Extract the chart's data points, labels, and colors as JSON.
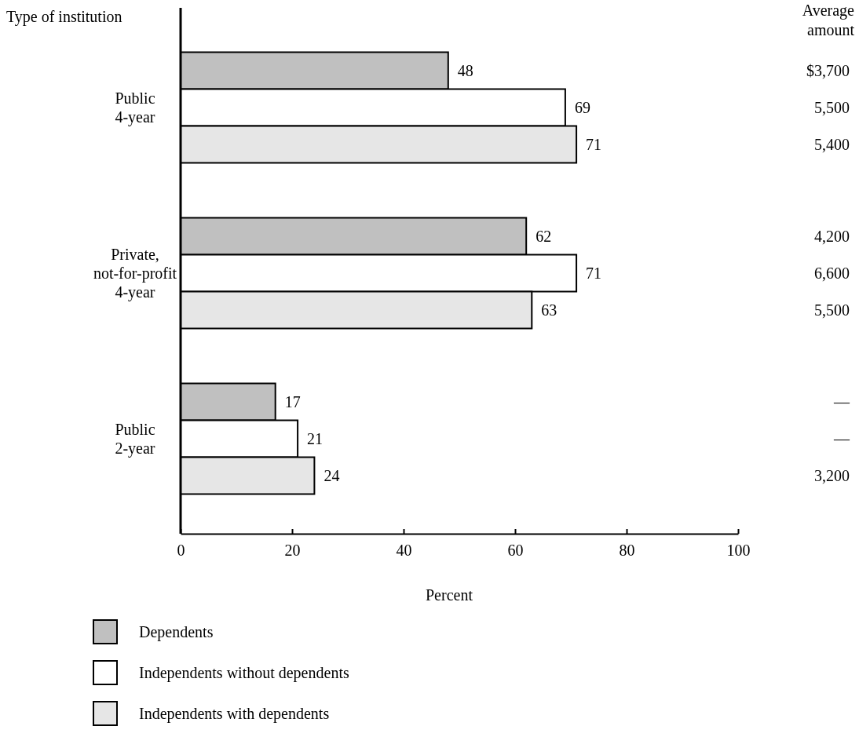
{
  "chart_data": {
    "type": "bar",
    "orientation": "horizontal",
    "ylabel": "Type of institution",
    "xlabel": "Percent",
    "categories": [
      "Public 4-year",
      "Private, not-for-profit 4-year",
      "Public 2-year"
    ],
    "series": [
      {
        "name": "Dependents",
        "color": "#c0c0c0",
        "values": [
          48,
          62,
          17
        ]
      },
      {
        "name": "Independents without dependents",
        "color": "#ffffff",
        "values": [
          69,
          71,
          21
        ]
      },
      {
        "name": "Independents with dependents",
        "color": "#e6e6e6",
        "values": [
          71,
          63,
          24
        ]
      }
    ],
    "xlim": [
      0,
      100
    ],
    "xticks": [
      0,
      20,
      40,
      60,
      80,
      100
    ],
    "data_labels": true,
    "legend": "bottom",
    "annotations": [
      "Average amount",
      "$3,700",
      "5,500",
      "5,400",
      "4,200",
      "6,600",
      "5,500",
      "—",
      "—",
      "3,200"
    ]
  }
}
